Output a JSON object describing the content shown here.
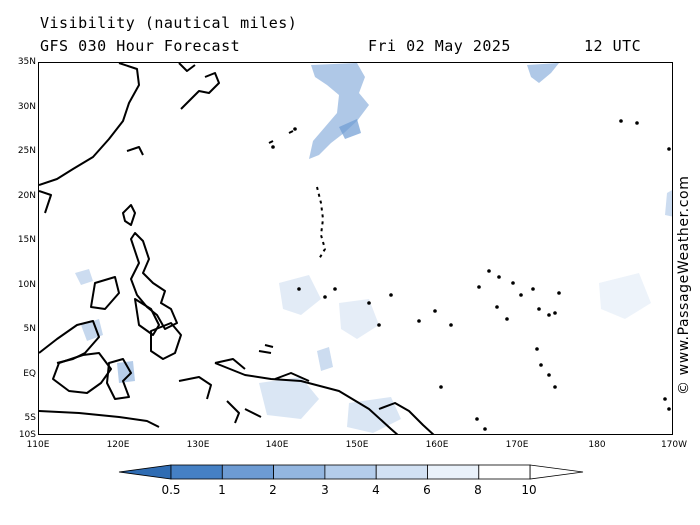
{
  "title": {
    "line1": "Visibility (nautical miles)",
    "line2": "GFS 030 Hour Forecast",
    "date": "Fri 02 May 2025",
    "time": "12 UTC"
  },
  "credit": "© www.PassageWeather.com",
  "lat_labels": [
    "35N",
    "30N",
    "25N",
    "20N",
    "15N",
    "10N",
    "5N",
    "EQ",
    "5S",
    "10S"
  ],
  "lon_labels": [
    "110E",
    "120E",
    "130E",
    "140E",
    "150E",
    "160E",
    "170E",
    "180",
    "170W"
  ],
  "legend": {
    "labels": [
      "0.5",
      "1",
      "2",
      "3",
      "4",
      "6",
      "8",
      "10"
    ],
    "colors": [
      "#2f6cb3",
      "#4580c4",
      "#6d9bd3",
      "#93b6e0",
      "#b4cdeb",
      "#d2e1f3",
      "#e9f1fa",
      "#ffffff"
    ]
  },
  "colors": {
    "land_outline": "#000000",
    "low_visibility": "#6d9bd3"
  }
}
